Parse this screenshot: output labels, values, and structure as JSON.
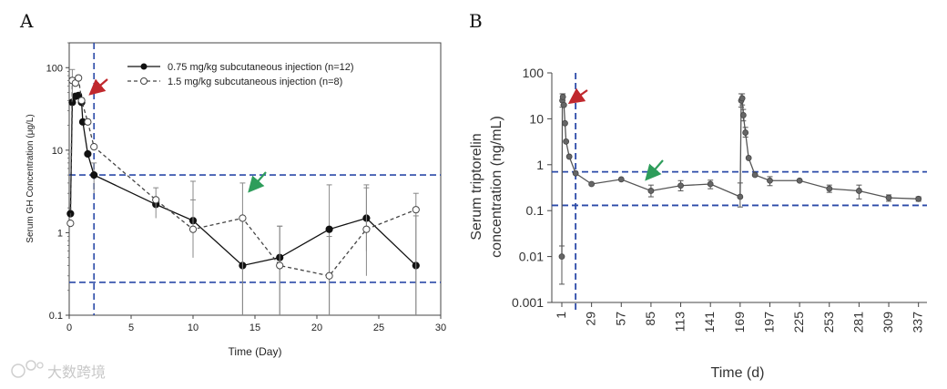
{
  "watermark": "大数跨境",
  "chart_data": [
    {
      "panel": "A",
      "type": "line",
      "xlabel": "Time (Day)",
      "ylabel": "Serum GH Concentration (μg/L)",
      "xlim": [
        0,
        30
      ],
      "ylim": [
        0.1,
        200
      ],
      "yscale": "log",
      "xticks": [
        0,
        5,
        10,
        15,
        20,
        25,
        30
      ],
      "yticks": [
        {
          "value": 0.1,
          "label": "0.1"
        },
        {
          "value": 1,
          "label": "1"
        },
        {
          "value": 10,
          "label": "10"
        },
        {
          "value": 100,
          "label": "100"
        }
      ],
      "legend": {
        "position": "top-right"
      },
      "reference_lines": {
        "vertical_x": 2,
        "horizontal_y": [
          5,
          0.25
        ],
        "color": "#2b4aa8",
        "style": "dashed"
      },
      "arrows": [
        {
          "color": "#c0282d",
          "target": [
            2,
            75
          ]
        },
        {
          "color": "#2e9d5b",
          "target": [
            14.5,
            5
          ]
        }
      ],
      "series": [
        {
          "name": "0.75 mg/kg subcutaneous injection (n=12)",
          "marker": "filled-circle",
          "line": "solid",
          "color": "#111111",
          "points": [
            {
              "x": 0.1,
              "y": 1.7
            },
            {
              "x": 0.25,
              "y": 38
            },
            {
              "x": 0.5,
              "y": 45
            },
            {
              "x": 0.75,
              "y": 46
            },
            {
              "x": 1.0,
              "y": 38
            },
            {
              "x": 1.1,
              "y": 22
            },
            {
              "x": 1.5,
              "y": 9
            },
            {
              "x": 2,
              "y": 5,
              "err": [
                3,
                7
              ]
            },
            {
              "x": 7,
              "y": 2.2
            },
            {
              "x": 10,
              "y": 1.4,
              "err": [
                0.5,
                4.2
              ]
            },
            {
              "x": 14,
              "y": 0.4,
              "err": [
                0.1,
                1.5
              ]
            },
            {
              "x": 17,
              "y": 0.5,
              "err": [
                0.1,
                1.2
              ]
            },
            {
              "x": 21,
              "y": 1.1,
              "err": [
                0.1,
                3.8
              ]
            },
            {
              "x": 24,
              "y": 1.5,
              "err": [
                0.6,
                3.8
              ]
            },
            {
              "x": 28,
              "y": 0.4,
              "err": [
                0.1,
                1.6
              ]
            }
          ]
        },
        {
          "name": "1.5 mg/kg subcutaneous injection (n=8)",
          "marker": "open-circle",
          "line": "dashed",
          "color": "#444444",
          "points": [
            {
              "x": 0.1,
              "y": 1.3
            },
            {
              "x": 0.25,
              "y": 70,
              "err": [
                40,
                95
              ]
            },
            {
              "x": 0.5,
              "y": 65
            },
            {
              "x": 0.75,
              "y": 75
            },
            {
              "x": 1.0,
              "y": 40
            },
            {
              "x": 1.5,
              "y": 22
            },
            {
              "x": 2,
              "y": 11
            },
            {
              "x": 7,
              "y": 2.5,
              "err": [
                1.5,
                3.5
              ]
            },
            {
              "x": 10,
              "y": 1.1,
              "err": [
                0.5,
                2.5
              ]
            },
            {
              "x": 14,
              "y": 1.5,
              "err": [
                0.1,
                4.0
              ]
            },
            {
              "x": 17,
              "y": 0.4,
              "err": [
                0.1,
                1.2
              ]
            },
            {
              "x": 21,
              "y": 0.3,
              "err": [
                0.1,
                0.9
              ]
            },
            {
              "x": 24,
              "y": 1.1,
              "err": [
                0.3,
                3.5
              ]
            },
            {
              "x": 28,
              "y": 1.9,
              "err": [
                0.1,
                3.0
              ]
            }
          ]
        }
      ]
    },
    {
      "panel": "B",
      "type": "line",
      "xlabel": "Time (d)",
      "ylabel": "Serum triptorelin concentration (ng/mL)",
      "ylabel_lines": [
        "Serum triptorelin",
        "concentration (ng/mL)"
      ],
      "xlim": [
        -5,
        345
      ],
      "ylim": [
        0.001,
        100
      ],
      "yscale": "log",
      "xticks": [
        1,
        29,
        57,
        85,
        113,
        141,
        169,
        197,
        225,
        253,
        281,
        309,
        337
      ],
      "yticks": [
        {
          "value": 0.001,
          "label": "0.001"
        },
        {
          "value": 0.01,
          "label": "0.01"
        },
        {
          "value": 0.1,
          "label": "0.1"
        },
        {
          "value": 1,
          "label": "1"
        },
        {
          "value": 10,
          "label": "10"
        },
        {
          "value": 100,
          "label": "100"
        }
      ],
      "reference_lines": {
        "vertical_x": 14,
        "horizontal_y": [
          0.7,
          0.13
        ],
        "color": "#2b4aa8",
        "style": "dashed"
      },
      "arrows": [
        {
          "color": "#c0282d",
          "target": [
            14,
            30
          ]
        },
        {
          "color": "#2e9d5b",
          "target": [
            80,
            0.7
          ]
        }
      ],
      "series": [
        {
          "name": "",
          "marker": "filled-circle",
          "line": "solid",
          "color": "#555555",
          "points": [
            {
              "x": 1,
              "y": 0.01,
              "err": [
                0.0025,
                0.017
              ]
            },
            {
              "x": 1.5,
              "y": 25,
              "err": [
                18,
                35
              ]
            },
            {
              "x": 2,
              "y": 30,
              "err": [
                20,
                35
              ]
            },
            {
              "x": 3,
              "y": 20
            },
            {
              "x": 4,
              "y": 8
            },
            {
              "x": 5,
              "y": 3.2
            },
            {
              "x": 8,
              "y": 1.5
            },
            {
              "x": 14,
              "y": 0.65
            },
            {
              "x": 29,
              "y": 0.38
            },
            {
              "x": 57,
              "y": 0.48
            },
            {
              "x": 85,
              "y": 0.27,
              "err": [
                0.2,
                0.36
              ]
            },
            {
              "x": 113,
              "y": 0.35,
              "err": [
                0.27,
                0.45
              ]
            },
            {
              "x": 141,
              "y": 0.38,
              "err": [
                0.3,
                0.46
              ]
            },
            {
              "x": 169,
              "y": 0.2,
              "err": [
                0.12,
                0.4
              ]
            },
            {
              "x": 170,
              "y": 25,
              "err": [
                18,
                35
              ]
            },
            {
              "x": 171,
              "y": 28,
              "err": [
                20,
                35
              ]
            },
            {
              "x": 172,
              "y": 12,
              "err": [
                9,
                16
              ]
            },
            {
              "x": 174,
              "y": 5,
              "err": [
                4,
                6.5
              ]
            },
            {
              "x": 177,
              "y": 1.4
            },
            {
              "x": 183,
              "y": 0.6
            },
            {
              "x": 197,
              "y": 0.45,
              "err": [
                0.35,
                0.55
              ]
            },
            {
              "x": 225,
              "y": 0.45
            },
            {
              "x": 253,
              "y": 0.3,
              "err": [
                0.25,
                0.36
              ]
            },
            {
              "x": 281,
              "y": 0.27,
              "err": [
                0.18,
                0.36
              ]
            },
            {
              "x": 309,
              "y": 0.19,
              "err": [
                0.16,
                0.22
              ]
            },
            {
              "x": 337,
              "y": 0.18,
              "err": [
                0.16,
                0.2
              ]
            }
          ]
        }
      ]
    }
  ],
  "panels": {
    "a_label": "A",
    "b_label": "B"
  }
}
